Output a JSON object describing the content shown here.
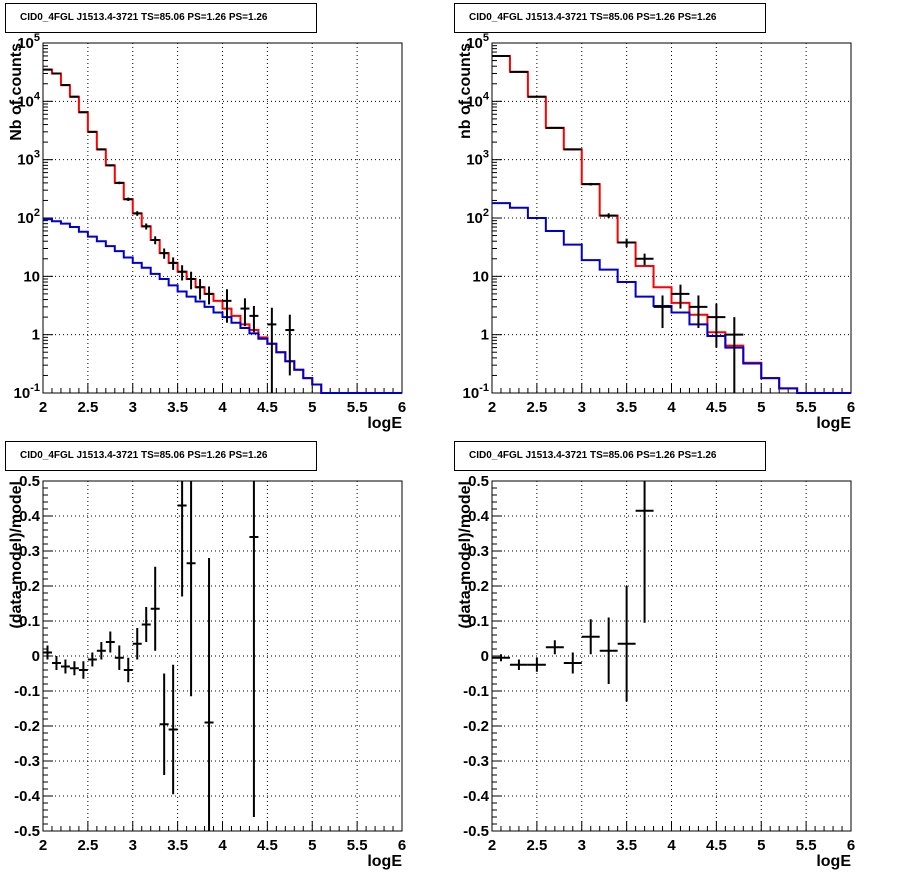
{
  "chart_data": [
    {
      "type": "line",
      "title": "CID0_4FGL J1513.4-3721 TS=85.06 PS=1.26 PS=1.26",
      "xlabel": "logE",
      "ylabel": "Nb of counts",
      "xlim": [
        2,
        6
      ],
      "ylim": [
        0.1,
        100000
      ],
      "yscale": "log",
      "grid": true,
      "xticks": [
        "2",
        "2.5",
        "3",
        "3.5",
        "4",
        "4.5",
        "5",
        "5.5",
        "6"
      ],
      "yticks": [
        {
          "value": 0.1,
          "label": "10-1",
          "base": "10",
          "exp": "-1"
        },
        {
          "value": 1,
          "label": "1"
        },
        {
          "value": 10,
          "label": "10"
        },
        {
          "value": 100,
          "label": "102",
          "base": "10",
          "exp": "2"
        },
        {
          "value": 1000,
          "label": "103",
          "base": "10",
          "exp": "3"
        },
        {
          "value": 10000,
          "label": "104",
          "base": "10",
          "exp": "4"
        },
        {
          "value": 100000,
          "label": "105",
          "base": "10",
          "exp": "5"
        }
      ],
      "bin_edges": [
        2.0,
        2.1,
        2.2,
        2.3,
        2.4,
        2.5,
        2.6,
        2.7,
        2.8,
        2.9,
        3.0,
        3.1,
        3.2,
        3.3,
        3.4,
        3.5,
        3.6,
        3.7,
        3.8,
        3.9,
        4.0,
        4.1,
        4.2,
        4.3,
        4.4,
        4.5,
        4.6,
        4.7,
        4.8,
        4.9,
        5.0,
        5.1,
        5.2,
        5.3,
        5.4,
        5.5,
        5.6,
        5.7,
        5.8,
        5.9,
        6.0
      ],
      "series": [
        {
          "color": "#ff0000",
          "kind": "step",
          "values": [
            35000,
            30000,
            19000,
            12000,
            6500,
            3000,
            1500,
            800,
            400,
            210,
            120,
            72,
            42,
            25,
            17,
            12,
            9,
            6.5,
            5,
            3.8,
            2.8,
            2.1,
            1.5,
            1.2,
            0.9,
            0.7,
            0.5,
            0.35,
            0.25,
            0.18,
            0.14,
            0.1,
            0.1,
            0.1,
            0.1,
            0.1,
            0.1,
            0.1,
            0.1,
            0.1
          ]
        },
        {
          "color": "#0000cc",
          "kind": "step",
          "values": [
            95,
            88,
            80,
            70,
            58,
            48,
            40,
            33,
            27,
            21,
            17,
            14,
            11,
            9,
            7,
            5.5,
            4.5,
            3.7,
            3,
            2.4,
            2,
            1.6,
            1.3,
            1.05,
            0.85,
            0.7,
            0.5,
            0.35,
            0.25,
            0.18,
            0.14,
            0.1,
            0.1,
            0.1,
            0.1,
            0.1,
            0.1,
            0.1,
            0.1,
            0.1
          ]
        },
        {
          "color": "#000000",
          "kind": "points",
          "x": [
            2.05,
            2.15,
            2.25,
            2.35,
            2.45,
            2.55,
            2.65,
            2.75,
            2.85,
            2.95,
            3.05,
            3.15,
            3.25,
            3.35,
            3.45,
            3.55,
            3.65,
            3.75,
            3.85,
            4.05,
            4.25,
            4.35,
            4.55,
            4.75
          ],
          "y": [
            35000,
            30000,
            19000,
            12000,
            6500,
            3000,
            1500,
            800,
            400,
            210,
            120,
            72,
            42,
            25,
            17,
            12,
            9,
            6.5,
            5,
            3.8,
            2.8,
            2.1,
            1.5,
            1.2
          ],
          "yerr": [
            187,
            173,
            138,
            110,
            81,
            55,
            39,
            28,
            20,
            14,
            11,
            8.5,
            6.5,
            5,
            4.1,
            3.5,
            3,
            2.5,
            1.7,
            2.2,
            1.4,
            1,
            1.4,
            1
          ]
        }
      ]
    },
    {
      "type": "line",
      "title": "CID0_4FGL J1513.4-3721 TS=85.06 PS=1.26 PS=1.26",
      "xlabel": "logE",
      "ylabel": "nb of counts",
      "xlim": [
        2,
        6
      ],
      "ylim": [
        0.1,
        100000
      ],
      "yscale": "log",
      "grid": true,
      "xticks": [
        "2",
        "2.5",
        "3",
        "3.5",
        "4",
        "4.5",
        "5",
        "5.5",
        "6"
      ],
      "yticks": [
        {
          "value": 0.1,
          "label": "10-1",
          "base": "10",
          "exp": "-1"
        },
        {
          "value": 1,
          "label": "1"
        },
        {
          "value": 10,
          "label": "10"
        },
        {
          "value": 100,
          "label": "102",
          "base": "10",
          "exp": "2"
        },
        {
          "value": 1000,
          "label": "103",
          "base": "10",
          "exp": "3"
        },
        {
          "value": 10000,
          "label": "104",
          "base": "10",
          "exp": "4"
        },
        {
          "value": 100000,
          "label": "105",
          "base": "10",
          "exp": "5"
        }
      ],
      "bin_edges": [
        2.0,
        2.2,
        2.4,
        2.6,
        2.8,
        3.0,
        3.2,
        3.4,
        3.6,
        3.8,
        4.0,
        4.2,
        4.4,
        4.6,
        4.8,
        5.0,
        5.2,
        5.4,
        5.6,
        5.8,
        6.0
      ],
      "series": [
        {
          "color": "#ff0000",
          "kind": "step",
          "values": [
            60000,
            32000,
            12000,
            3500,
            1500,
            380,
            110,
            38,
            15,
            6.5,
            3.5,
            2.2,
            1.1,
            0.65,
            0.33,
            0.18,
            0.12,
            0.1,
            0.1,
            0.1
          ]
        },
        {
          "color": "#0000cc",
          "kind": "step",
          "values": [
            180,
            150,
            100,
            60,
            35,
            19,
            13,
            8,
            4.5,
            3.1,
            2.4,
            1.5,
            0.95,
            0.6,
            0.32,
            0.18,
            0.12,
            0.1,
            0.1,
            0.1
          ]
        },
        {
          "color": "#000000",
          "kind": "points",
          "x": [
            2.1,
            2.3,
            2.5,
            2.7,
            2.9,
            3.1,
            3.3,
            3.5,
            3.7,
            3.9,
            4.1,
            4.3,
            4.5,
            4.7
          ],
          "y": [
            60000,
            32000,
            12000,
            3500,
            1500,
            380,
            110,
            38,
            20,
            3,
            5,
            3,
            2,
            1
          ],
          "yerr": [
            245,
            179,
            110,
            59,
            39,
            19.5,
            10.5,
            6.2,
            4.5,
            1.7,
            2.2,
            1.7,
            1.4,
            1
          ]
        }
      ]
    },
    {
      "type": "scatter",
      "title": "CID0_4FGL J1513.4-3721 TS=85.06 PS=1.26 PS=1.26",
      "xlabel": "logE",
      "ylabel": "(data-model)/model",
      "xlim": [
        2,
        6
      ],
      "ylim": [
        -0.5,
        0.5
      ],
      "grid": true,
      "xticks": [
        "2",
        "2.5",
        "3",
        "3.5",
        "4",
        "4.5",
        "5",
        "5.5",
        "6"
      ],
      "yticks": [
        "-0.5",
        "-0.4",
        "-0.3",
        "-0.2",
        "-0.1",
        "0",
        "0.1",
        "0.2",
        "0.3",
        "0.4",
        "0.5"
      ],
      "xerr": 0.05,
      "series": [
        {
          "color": "#000000",
          "x": [
            2.05,
            2.15,
            2.25,
            2.35,
            2.45,
            2.55,
            2.65,
            2.75,
            2.85,
            2.95,
            3.05,
            3.15,
            3.25,
            3.35,
            3.45,
            3.55,
            3.65,
            3.85,
            4.35
          ],
          "y": [
            0.01,
            -0.02,
            -0.03,
            -0.035,
            -0.04,
            -0.01,
            0.015,
            0.04,
            -0.005,
            -0.04,
            0.035,
            0.09,
            0.135,
            -0.195,
            -0.21,
            0.43,
            0.265,
            -0.19,
            0.34
          ],
          "yerr": [
            0.02,
            0.02,
            0.02,
            0.02,
            0.025,
            0.02,
            0.025,
            0.03,
            0.035,
            0.035,
            0.045,
            0.05,
            0.12,
            0.145,
            0.185,
            0.26,
            0.38,
            0.47,
            0.8
          ]
        }
      ]
    },
    {
      "type": "scatter",
      "title": "CID0_4FGL J1513.4-3721 TS=85.06 PS=1.26 PS=1.26",
      "xlabel": "logE",
      "ylabel": "(data-model)/model",
      "xlim": [
        2,
        6
      ],
      "ylim": [
        -0.5,
        0.5
      ],
      "grid": true,
      "xticks": [
        "2",
        "2.5",
        "3",
        "3.5",
        "4",
        "4.5",
        "5",
        "5.5",
        "6"
      ],
      "yticks": [
        "-0.5",
        "-0.4",
        "-0.3",
        "-0.2",
        "-0.1",
        "0",
        "0.1",
        "0.2",
        "0.3",
        "0.4",
        "0.5"
      ],
      "xerr": 0.1,
      "series": [
        {
          "color": "#000000",
          "x": [
            2.1,
            2.3,
            2.5,
            2.7,
            2.9,
            3.1,
            3.3,
            3.5,
            3.7
          ],
          "y": [
            -0.005,
            -0.025,
            -0.025,
            0.025,
            -0.02,
            0.055,
            0.015,
            0.035,
            0.415
          ],
          "yerr": [
            0.01,
            0.015,
            0.02,
            0.02,
            0.03,
            0.05,
            0.095,
            0.165,
            0.32
          ]
        }
      ]
    }
  ]
}
